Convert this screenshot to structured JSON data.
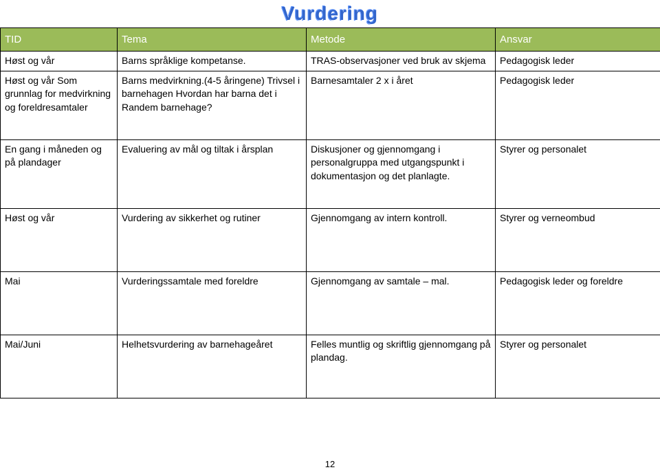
{
  "title": "Vurdering",
  "colors": {
    "header_bg": "#9bbb59",
    "header_text": "#ffffff",
    "title_color": "#3366cc",
    "border": "#000000",
    "page_bg": "#ffffff"
  },
  "columns": [
    "TID",
    "Tema",
    "Metode",
    "Ansvar"
  ],
  "rows": [
    {
      "tid": "Høst og vår",
      "tema": "Barns språklige kompetanse.",
      "metode": "TRAS-observasjoner ved bruk av skjema",
      "ansvar": "Pedagogisk leder"
    },
    {
      "tid": "Høst og vår\nSom grunnlag for medvirkning og foreldresamtaler",
      "tema": "Barns medvirkning.(4-5 åringene) Trivsel i barnehagen Hvordan har barna det i Randem barnehage?",
      "metode": "Barnesamtaler 2 x i året",
      "ansvar": "Pedagogisk leder"
    },
    {
      "tid": "En gang i måneden og på plandager",
      "tema": "Evaluering av mål og tiltak i årsplan",
      "metode": "Diskusjoner og gjennomgang i personalgruppa med utgangspunkt i dokumentasjon og det planlagte.",
      "ansvar": "Styrer og personalet"
    },
    {
      "tid": "Høst og vår",
      "tema": "Vurdering av sikkerhet og rutiner",
      "metode": "Gjennomgang av intern kontroll.",
      "ansvar": "Styrer og verneombud"
    },
    {
      "tid": "Mai",
      "tema": "Vurderingssamtale med foreldre",
      "metode": "Gjennomgang av samtale – mal.",
      "ansvar": "Pedagogisk leder og foreldre"
    },
    {
      "tid": "Mai/Juni",
      "tema": "Helhetsvurdering av barnehageåret",
      "metode": "Felles muntlig og skriftlig gjennomgang på plandag.",
      "ansvar": "Styrer og personalet"
    }
  ],
  "page_number": "12"
}
